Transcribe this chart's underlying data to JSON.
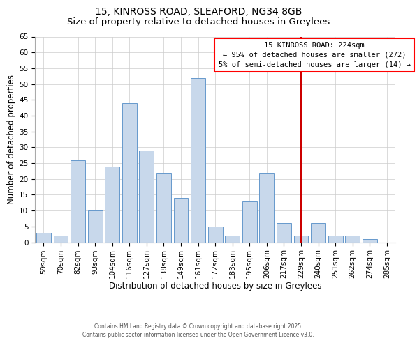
{
  "title": "15, KINROSS ROAD, SLEAFORD, NG34 8GB",
  "subtitle": "Size of property relative to detached houses in Greylees",
  "xlabel": "Distribution of detached houses by size in Greylees",
  "ylabel": "Number of detached properties",
  "categories": [
    "59sqm",
    "70sqm",
    "82sqm",
    "93sqm",
    "104sqm",
    "116sqm",
    "127sqm",
    "138sqm",
    "149sqm",
    "161sqm",
    "172sqm",
    "183sqm",
    "195sqm",
    "206sqm",
    "217sqm",
    "229sqm",
    "240sqm",
    "251sqm",
    "262sqm",
    "274sqm",
    "285sqm"
  ],
  "values": [
    3,
    2,
    26,
    10,
    24,
    44,
    29,
    22,
    14,
    52,
    5,
    2,
    13,
    22,
    6,
    2,
    6,
    2,
    2,
    1,
    0
  ],
  "bar_color": "#c8d8eb",
  "bar_edge_color": "#6699cc",
  "ylim": [
    0,
    65
  ],
  "yticks": [
    0,
    5,
    10,
    15,
    20,
    25,
    30,
    35,
    40,
    45,
    50,
    55,
    60,
    65
  ],
  "vline_x_index": 15,
  "vline_color": "#cc0000",
  "annotation_line1": "15 KINROSS ROAD: 224sqm",
  "annotation_line2": "← 95% of detached houses are smaller (272)",
  "annotation_line3": "5% of semi-detached houses are larger (14) →",
  "annotation_fontsize": 7.5,
  "title_fontsize": 10,
  "subtitle_fontsize": 9.5,
  "xlabel_fontsize": 8.5,
  "ylabel_fontsize": 8.5,
  "tick_fontsize": 7.5,
  "footer_line1": "Contains HM Land Registry data © Crown copyright and database right 2025.",
  "footer_line2": "Contains public sector information licensed under the Open Government Licence v3.0.",
  "background_color": "#ffffff",
  "grid_color": "#cccccc"
}
